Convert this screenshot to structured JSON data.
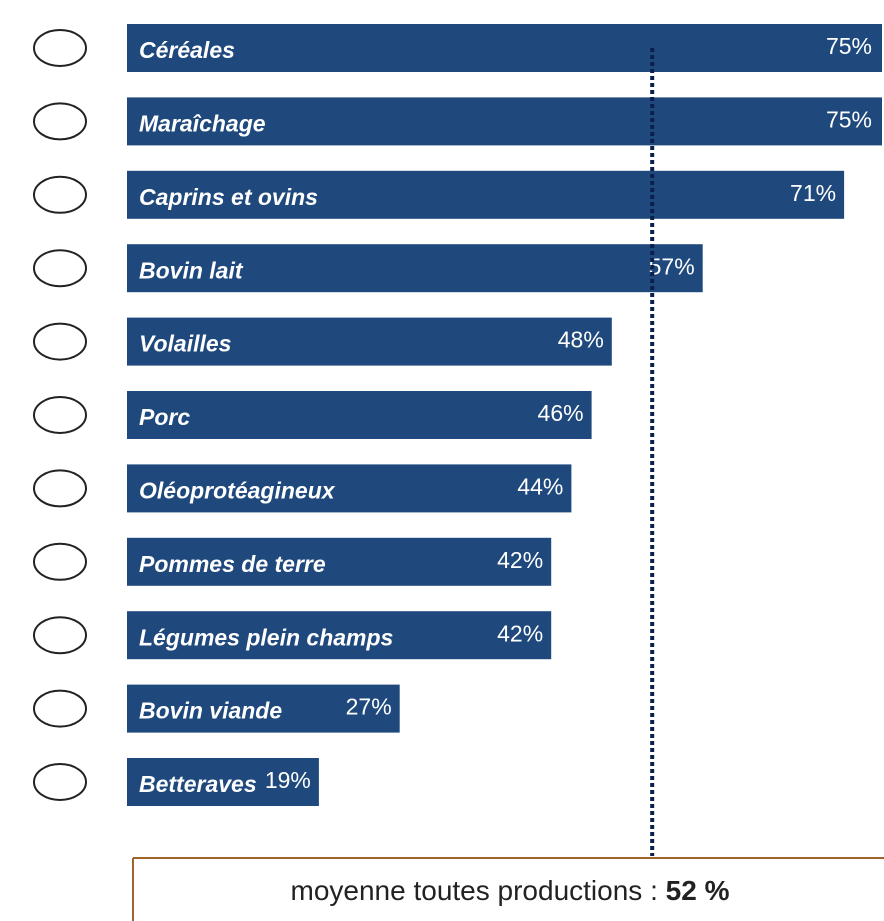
{
  "chart_data": {
    "type": "bar",
    "orientation": "horizontal",
    "color": "#1f497d",
    "categories": [
      "Céréales",
      "Maraîchage",
      "Caprins et ovins",
      "Bovin lait",
      "Volailles",
      "Porc",
      "Oléoprotéagineux",
      "Pommes de terre",
      "Légumes plein champs",
      "Bovin viande",
      "Betteraves"
    ],
    "values": [
      75,
      75,
      71,
      57,
      48,
      46,
      44,
      42,
      42,
      27,
      19
    ],
    "value_labels": [
      "75%",
      "75%",
      "71%",
      "57%",
      "48%",
      "46%",
      "44%",
      "42%",
      "42%",
      "27%",
      "19%"
    ],
    "average": {
      "label": "moyenne toutes productions :",
      "value": 52,
      "value_label": "52 %",
      "color": "#0b1f4d"
    }
  }
}
